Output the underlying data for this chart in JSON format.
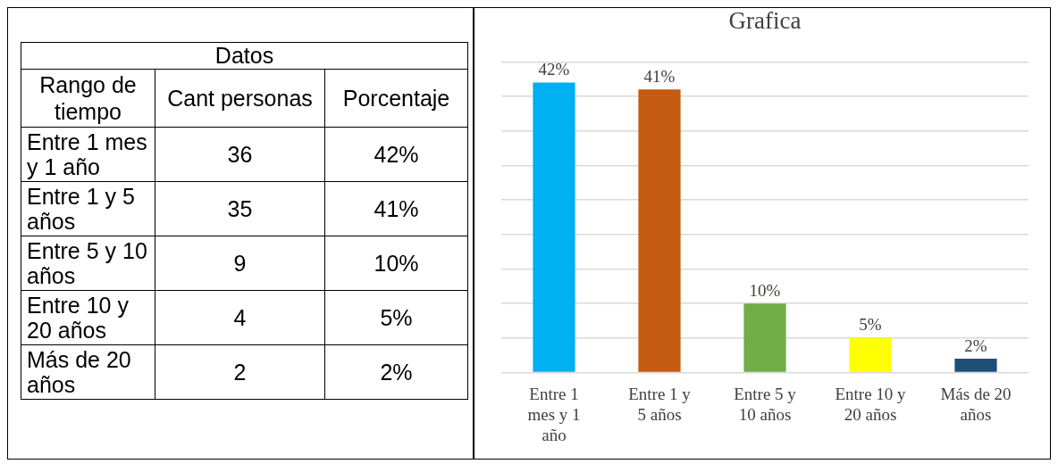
{
  "chart_data": [
    {
      "type": "other",
      "title": "Datos",
      "xlabel": "Rango de tiempo",
      "categories": [
        "Entre 1 mes y 1 año",
        "Entre 1 y 5 años",
        "Entre 5 y 10 años",
        "Entre 10 y 20 años",
        "Más de 20 años"
      ],
      "data_labels": true,
      "series": [
        {
          "name": "Cant personas",
          "values": [
            36,
            35,
            9,
            4,
            2
          ]
        },
        {
          "name": "Porcentaje",
          "values": [
            42,
            41,
            10,
            5,
            2
          ],
          "value_labels": [
            "42%",
            "41%",
            "10%",
            "5%",
            "2%"
          ]
        }
      ]
    },
    {
      "type": "bar",
      "title": "Grafica",
      "categories": [
        "Entre 1 mes y 1 año",
        "Entre 1 y 5 años",
        "Entre 5 y 10 años",
        "Entre 10 y 20 años",
        "Más de 20 años"
      ],
      "values": [
        42,
        41,
        10,
        5,
        2
      ],
      "value_labels": [
        "42%",
        "41%",
        "10%",
        "5%",
        "2%"
      ],
      "colors": [
        "#00b0f0",
        "#c55a11",
        "#70ad47",
        "#ffff00",
        "#1f4e79"
      ],
      "ylim": [
        0,
        45
      ],
      "yticks": [
        {
          "value": 0,
          "label": null
        },
        {
          "value": 5,
          "label": null
        },
        {
          "value": 10,
          "label": null
        },
        {
          "value": 15,
          "label": null
        },
        {
          "value": 20,
          "label": null
        },
        {
          "value": 25,
          "label": null
        },
        {
          "value": 30,
          "label": null
        },
        {
          "value": 35,
          "label": null
        },
        {
          "value": 40,
          "label": null
        },
        {
          "value": 45,
          "label": null
        }
      ],
      "grid": "y",
      "tick_labels": "x",
      "legend": false
    }
  ]
}
